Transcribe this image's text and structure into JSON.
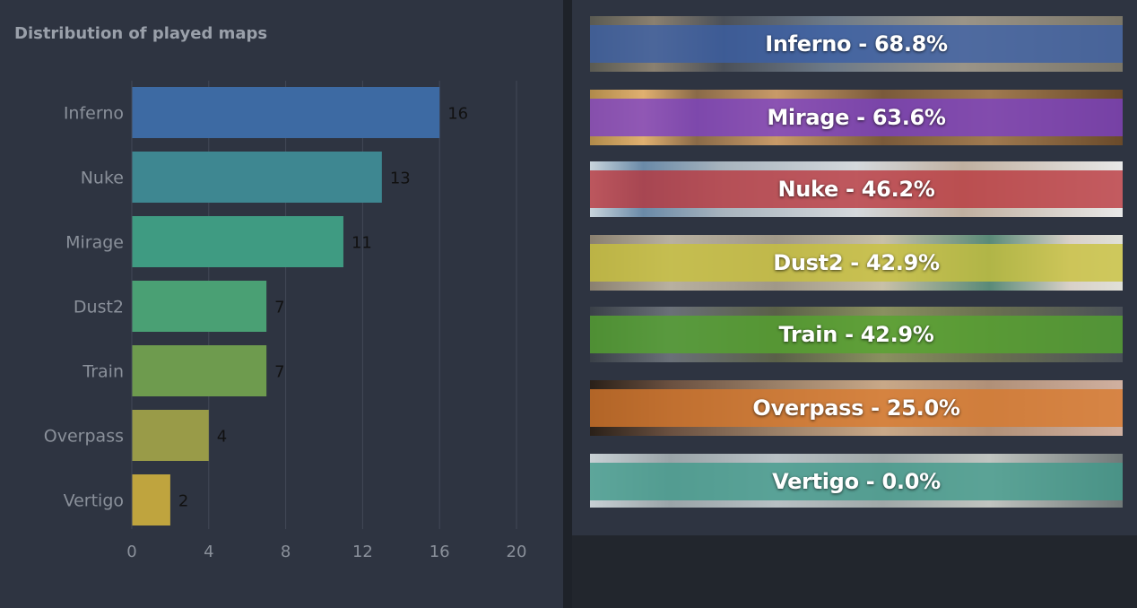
{
  "chart_data": {
    "type": "bar",
    "orientation": "horizontal",
    "title": "Distribution of played maps",
    "categories": [
      "Inferno",
      "Nuke",
      "Mirage",
      "Dust2",
      "Train",
      "Overpass",
      "Vertigo"
    ],
    "values": [
      16,
      13,
      11,
      7,
      7,
      4,
      2
    ],
    "xlim": [
      0,
      20
    ],
    "xticks": [
      "0",
      "4",
      "8",
      "12",
      "16",
      "20"
    ],
    "grid": true,
    "legend": "none",
    "colors": [
      "#3d6aa3",
      "#3e8791",
      "#3f9b82",
      "#4aa074",
      "#6e9b4e",
      "#999b48",
      "#bfa43e"
    ]
  },
  "map_winrates": [
    {
      "label": "Inferno - 68.8%",
      "map": "Inferno",
      "winrate": 68.8,
      "color": "#3a5fa6"
    },
    {
      "label": "Mirage - 63.6%",
      "map": "Mirage",
      "winrate": 63.6,
      "color": "#7a3fc8"
    },
    {
      "label": "Nuke - 46.2%",
      "map": "Nuke",
      "winrate": 46.2,
      "color": "#b8333a"
    },
    {
      "label": "Dust2 - 42.9%",
      "map": "Dust2",
      "winrate": 42.9,
      "color": "#c9c23a"
    },
    {
      "label": "Train - 42.9%",
      "map": "Train",
      "winrate": 42.9,
      "color": "#55a52e"
    },
    {
      "label": "Overpass - 25.0%",
      "map": "Overpass",
      "winrate": 25.0,
      "color": "#d9782c"
    },
    {
      "label": "Vertigo - 0.0%",
      "map": "Vertigo",
      "winrate": 0.0,
      "color": "#3f9a8a"
    }
  ]
}
